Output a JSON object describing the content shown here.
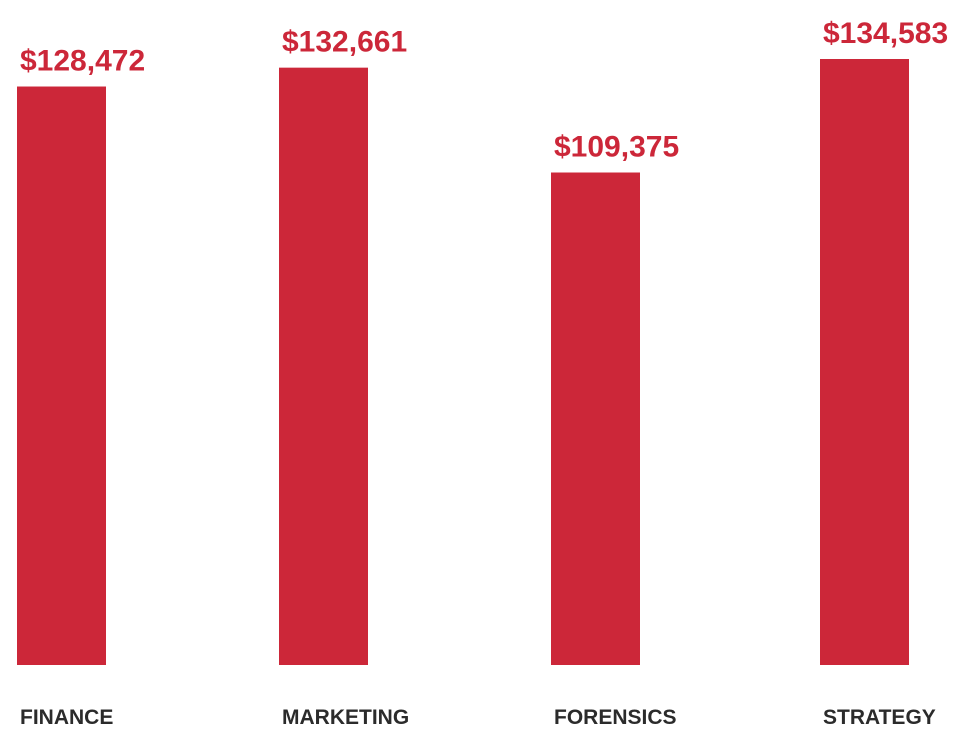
{
  "chart_data": {
    "type": "bar",
    "categories": [
      "FINANCE",
      "MARKETING",
      "FORENSICS",
      "STRATEGY"
    ],
    "values": [
      128472,
      132661,
      109375,
      134583
    ],
    "value_labels": [
      "$128,472",
      "$132,661",
      "$109,375",
      "$134,583"
    ],
    "color": "#cc2739"
  }
}
